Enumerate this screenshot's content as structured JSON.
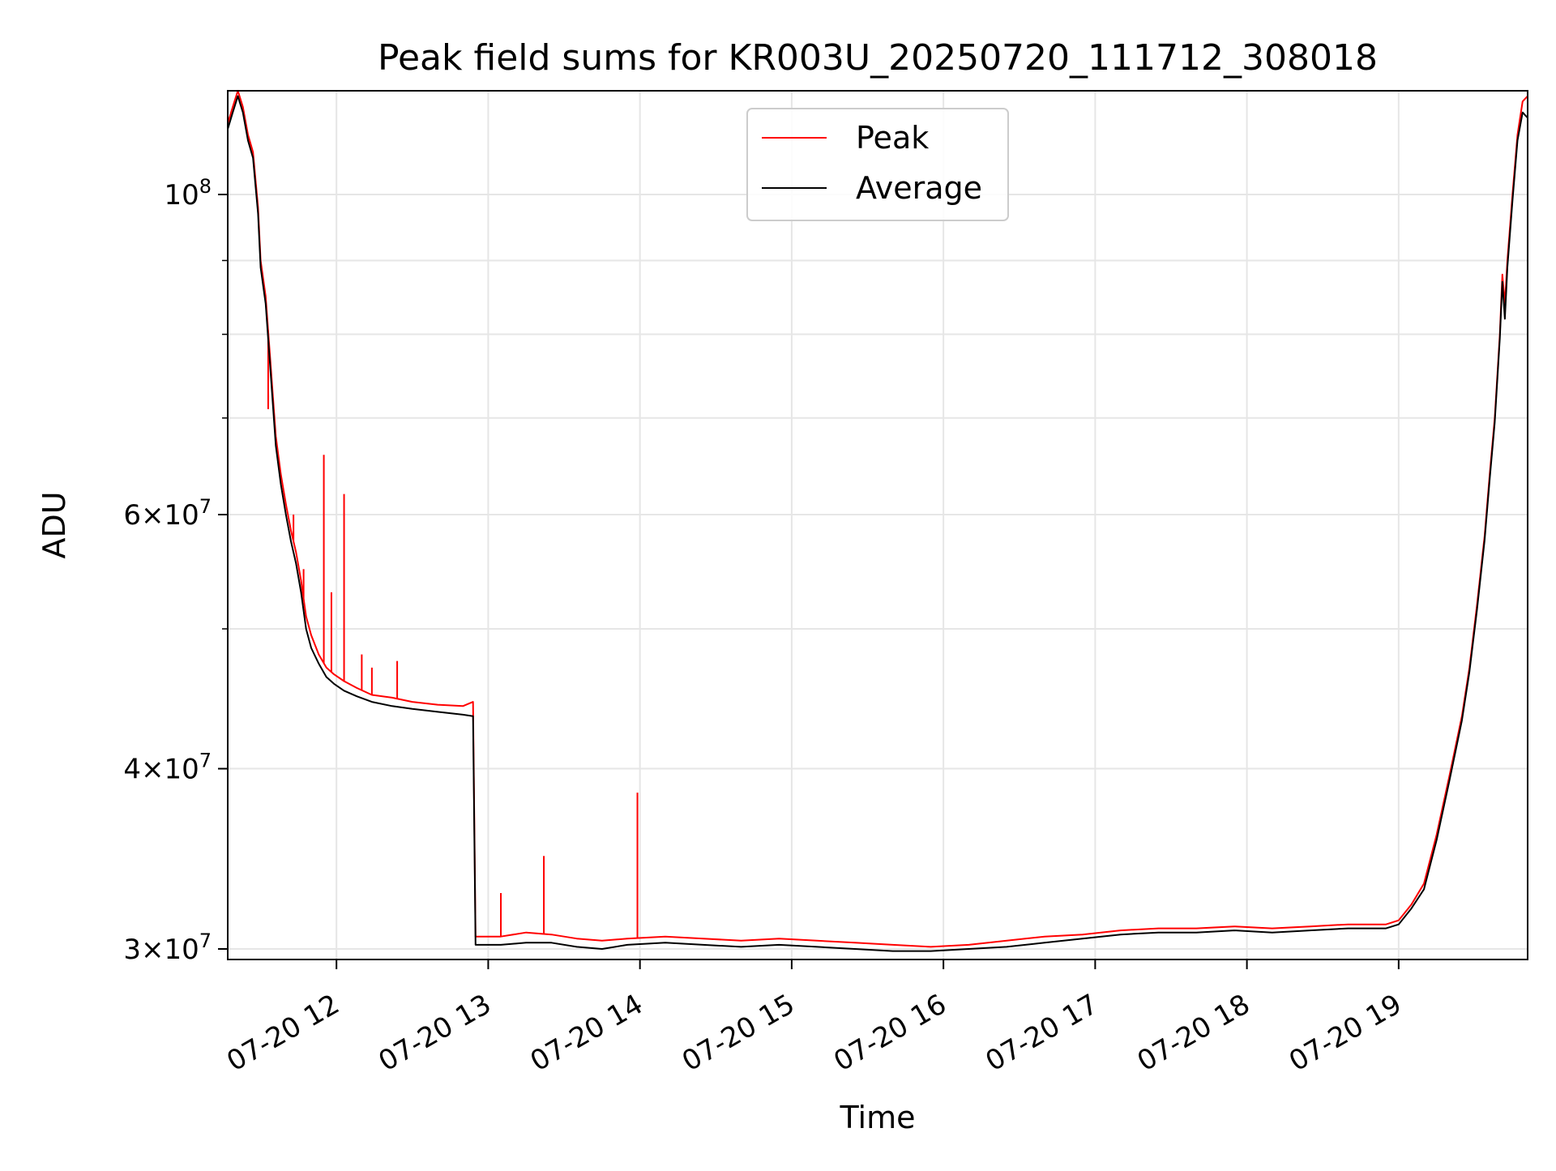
{
  "chart_data": {
    "type": "line",
    "title": "Peak field sums for KR003U_20250720_111712_308018",
    "xlabel": "Time",
    "ylabel": "ADU",
    "y_scale": "log",
    "x_range": [
      "2025-07-20 11:17",
      "2025-07-20 19:51"
    ],
    "ylim": [
      29500000,
      118000000
    ],
    "x_ticks": [
      {
        "label": "07-20 12",
        "value": "2025-07-20 12:00"
      },
      {
        "label": "07-20 13",
        "value": "2025-07-20 13:00"
      },
      {
        "label": "07-20 14",
        "value": "2025-07-20 14:00"
      },
      {
        "label": "07-20 15",
        "value": "2025-07-20 15:00"
      },
      {
        "label": "07-20 16",
        "value": "2025-07-20 16:00"
      },
      {
        "label": "07-20 17",
        "value": "2025-07-20 17:00"
      },
      {
        "label": "07-20 18",
        "value": "2025-07-20 18:00"
      },
      {
        "label": "07-20 19",
        "value": "2025-07-20 19:00"
      }
    ],
    "y_ticks": [
      {
        "base": "3",
        "exp": "7",
        "value": 30000000
      },
      {
        "base": "4",
        "exp": "7",
        "value": 40000000
      },
      {
        "base": "6",
        "exp": "7",
        "value": 60000000
      },
      {
        "base": "",
        "exp": "8",
        "value": 100000000
      }
    ],
    "y_minor_ticks": [
      50000000,
      70000000,
      80000000,
      90000000
    ],
    "grid": true,
    "legend_position": "top-center",
    "series": [
      {
        "name": "Peak",
        "color": "#ff0000",
        "points": [
          [
            "2025-07-20 11:17",
            112000000
          ],
          [
            "2025-07-20 11:19",
            115000000
          ],
          [
            "2025-07-20 11:21",
            118000000
          ],
          [
            "2025-07-20 11:23",
            115000000
          ],
          [
            "2025-07-20 11:25",
            110000000
          ],
          [
            "2025-07-20 11:27",
            107000000
          ],
          [
            "2025-07-20 11:29",
            98000000
          ],
          [
            "2025-07-20 11:30",
            90000000
          ],
          [
            "2025-07-20 11:32",
            85000000
          ],
          [
            "2025-07-20 11:34",
            76000000
          ],
          [
            "2025-07-20 11:36",
            68000000
          ],
          [
            "2025-07-20 11:38",
            64000000
          ],
          [
            "2025-07-20 11:40",
            61000000
          ],
          [
            "2025-07-20 11:42",
            58500000
          ],
          [
            "2025-07-20 11:44",
            56500000
          ],
          [
            "2025-07-20 11:46",
            54000000
          ],
          [
            "2025-07-20 11:48",
            51000000
          ],
          [
            "2025-07-20 11:50",
            49500000
          ],
          [
            "2025-07-20 11:53",
            48000000
          ],
          [
            "2025-07-20 11:56",
            47000000
          ],
          [
            "2025-07-20 11:59",
            46500000
          ],
          [
            "2025-07-20 12:03",
            46000000
          ],
          [
            "2025-07-20 12:08",
            45500000
          ],
          [
            "2025-07-20 12:14",
            45000000
          ],
          [
            "2025-07-20 12:22",
            44800000
          ],
          [
            "2025-07-20 12:30",
            44500000
          ],
          [
            "2025-07-20 12:40",
            44300000
          ],
          [
            "2025-07-20 12:50",
            44200000
          ],
          [
            "2025-07-20 12:54",
            44500000
          ],
          [
            "2025-07-20 12:55",
            30600000
          ],
          [
            "2025-07-20 13:05",
            30600000
          ],
          [
            "2025-07-20 13:15",
            30800000
          ],
          [
            "2025-07-20 13:25",
            30700000
          ],
          [
            "2025-07-20 13:35",
            30500000
          ],
          [
            "2025-07-20 13:45",
            30400000
          ],
          [
            "2025-07-20 13:55",
            30500000
          ],
          [
            "2025-07-20 14:10",
            30600000
          ],
          [
            "2025-07-20 14:25",
            30500000
          ],
          [
            "2025-07-20 14:40",
            30400000
          ],
          [
            "2025-07-20 14:55",
            30500000
          ],
          [
            "2025-07-20 15:10",
            30400000
          ],
          [
            "2025-07-20 15:25",
            30300000
          ],
          [
            "2025-07-20 15:40",
            30200000
          ],
          [
            "2025-07-20 15:55",
            30100000
          ],
          [
            "2025-07-20 16:10",
            30200000
          ],
          [
            "2025-07-20 16:25",
            30400000
          ],
          [
            "2025-07-20 16:40",
            30600000
          ],
          [
            "2025-07-20 16:55",
            30700000
          ],
          [
            "2025-07-20 17:10",
            30900000
          ],
          [
            "2025-07-20 17:25",
            31000000
          ],
          [
            "2025-07-20 17:40",
            31000000
          ],
          [
            "2025-07-20 17:55",
            31100000
          ],
          [
            "2025-07-20 18:10",
            31000000
          ],
          [
            "2025-07-20 18:25",
            31100000
          ],
          [
            "2025-07-20 18:40",
            31200000
          ],
          [
            "2025-07-20 18:55",
            31200000
          ],
          [
            "2025-07-20 19:00",
            31400000
          ],
          [
            "2025-07-20 19:05",
            32200000
          ],
          [
            "2025-07-20 19:10",
            33300000
          ],
          [
            "2025-07-20 19:15",
            36000000
          ],
          [
            "2025-07-20 19:20",
            39500000
          ],
          [
            "2025-07-20 19:25",
            43500000
          ],
          [
            "2025-07-20 19:28",
            47000000
          ],
          [
            "2025-07-20 19:31",
            52000000
          ],
          [
            "2025-07-20 19:34",
            58000000
          ],
          [
            "2025-07-20 19:36",
            64000000
          ],
          [
            "2025-07-20 19:38",
            70000000
          ],
          [
            "2025-07-20 19:40",
            80000000
          ],
          [
            "2025-07-20 19:41",
            88000000
          ],
          [
            "2025-07-20 19:42",
            84000000
          ],
          [
            "2025-07-20 19:43",
            90000000
          ],
          [
            "2025-07-20 19:45",
            100000000
          ],
          [
            "2025-07-20 19:47",
            110000000
          ],
          [
            "2025-07-20 19:49",
            116000000
          ],
          [
            "2025-07-20 19:51",
            117000000
          ]
        ],
        "spikes": [
          [
            "2025-07-20 11:33",
            71000000
          ],
          [
            "2025-07-20 11:43",
            60000000
          ],
          [
            "2025-07-20 11:47",
            55000000
          ],
          [
            "2025-07-20 11:55",
            66000000
          ],
          [
            "2025-07-20 11:58",
            53000000
          ],
          [
            "2025-07-20 12:03",
            62000000
          ],
          [
            "2025-07-20 12:10",
            48000000
          ],
          [
            "2025-07-20 12:14",
            47000000
          ],
          [
            "2025-07-20 12:24",
            47500000
          ],
          [
            "2025-07-20 13:05",
            32800000
          ],
          [
            "2025-07-20 13:22",
            34800000
          ],
          [
            "2025-07-20 13:59",
            38500000
          ]
        ]
      },
      {
        "name": "Average",
        "color": "#000000",
        "points": [
          [
            "2025-07-20 11:17",
            111000000
          ],
          [
            "2025-07-20 11:19",
            114000000
          ],
          [
            "2025-07-20 11:21",
            117000000
          ],
          [
            "2025-07-20 11:23",
            114000000
          ],
          [
            "2025-07-20 11:25",
            109000000
          ],
          [
            "2025-07-20 11:27",
            106000000
          ],
          [
            "2025-07-20 11:29",
            97000000
          ],
          [
            "2025-07-20 11:30",
            89000000
          ],
          [
            "2025-07-20 11:32",
            84000000
          ],
          [
            "2025-07-20 11:34",
            75000000
          ],
          [
            "2025-07-20 11:36",
            67000000
          ],
          [
            "2025-07-20 11:38",
            63000000
          ],
          [
            "2025-07-20 11:40",
            60000000
          ],
          [
            "2025-07-20 11:42",
            57500000
          ],
          [
            "2025-07-20 11:44",
            55500000
          ],
          [
            "2025-07-20 11:46",
            53000000
          ],
          [
            "2025-07-20 11:48",
            50000000
          ],
          [
            "2025-07-20 11:50",
            48500000
          ],
          [
            "2025-07-20 11:53",
            47300000
          ],
          [
            "2025-07-20 11:56",
            46300000
          ],
          [
            "2025-07-20 11:59",
            45800000
          ],
          [
            "2025-07-20 12:03",
            45300000
          ],
          [
            "2025-07-20 12:08",
            44900000
          ],
          [
            "2025-07-20 12:14",
            44500000
          ],
          [
            "2025-07-20 12:22",
            44200000
          ],
          [
            "2025-07-20 12:30",
            44000000
          ],
          [
            "2025-07-20 12:40",
            43800000
          ],
          [
            "2025-07-20 12:50",
            43600000
          ],
          [
            "2025-07-20 12:54",
            43500000
          ],
          [
            "2025-07-20 12:55",
            30200000
          ],
          [
            "2025-07-20 13:05",
            30200000
          ],
          [
            "2025-07-20 13:15",
            30300000
          ],
          [
            "2025-07-20 13:25",
            30300000
          ],
          [
            "2025-07-20 13:35",
            30100000
          ],
          [
            "2025-07-20 13:45",
            30000000
          ],
          [
            "2025-07-20 13:55",
            30200000
          ],
          [
            "2025-07-20 14:10",
            30300000
          ],
          [
            "2025-07-20 14:25",
            30200000
          ],
          [
            "2025-07-20 14:40",
            30100000
          ],
          [
            "2025-07-20 14:55",
            30200000
          ],
          [
            "2025-07-20 15:10",
            30100000
          ],
          [
            "2025-07-20 15:25",
            30000000
          ],
          [
            "2025-07-20 15:40",
            29900000
          ],
          [
            "2025-07-20 15:55",
            29900000
          ],
          [
            "2025-07-20 16:10",
            30000000
          ],
          [
            "2025-07-20 16:25",
            30100000
          ],
          [
            "2025-07-20 16:40",
            30300000
          ],
          [
            "2025-07-20 16:55",
            30500000
          ],
          [
            "2025-07-20 17:10",
            30700000
          ],
          [
            "2025-07-20 17:25",
            30800000
          ],
          [
            "2025-07-20 17:40",
            30800000
          ],
          [
            "2025-07-20 17:55",
            30900000
          ],
          [
            "2025-07-20 18:10",
            30800000
          ],
          [
            "2025-07-20 18:25",
            30900000
          ],
          [
            "2025-07-20 18:40",
            31000000
          ],
          [
            "2025-07-20 18:55",
            31000000
          ],
          [
            "2025-07-20 19:00",
            31200000
          ],
          [
            "2025-07-20 19:05",
            32000000
          ],
          [
            "2025-07-20 19:10",
            33000000
          ],
          [
            "2025-07-20 19:15",
            35700000
          ],
          [
            "2025-07-20 19:20",
            39200000
          ],
          [
            "2025-07-20 19:25",
            43200000
          ],
          [
            "2025-07-20 19:28",
            46700000
          ],
          [
            "2025-07-20 19:31",
            51600000
          ],
          [
            "2025-07-20 19:34",
            57600000
          ],
          [
            "2025-07-20 19:36",
            63500000
          ],
          [
            "2025-07-20 19:38",
            69500000
          ],
          [
            "2025-07-20 19:40",
            79500000
          ],
          [
            "2025-07-20 19:41",
            87000000
          ],
          [
            "2025-07-20 19:42",
            82000000
          ],
          [
            "2025-07-20 19:43",
            89000000
          ],
          [
            "2025-07-20 19:45",
            99000000
          ],
          [
            "2025-07-20 19:47",
            109000000
          ],
          [
            "2025-07-20 19:49",
            114000000
          ],
          [
            "2025-07-20 19:51",
            113000000
          ]
        ]
      }
    ]
  }
}
